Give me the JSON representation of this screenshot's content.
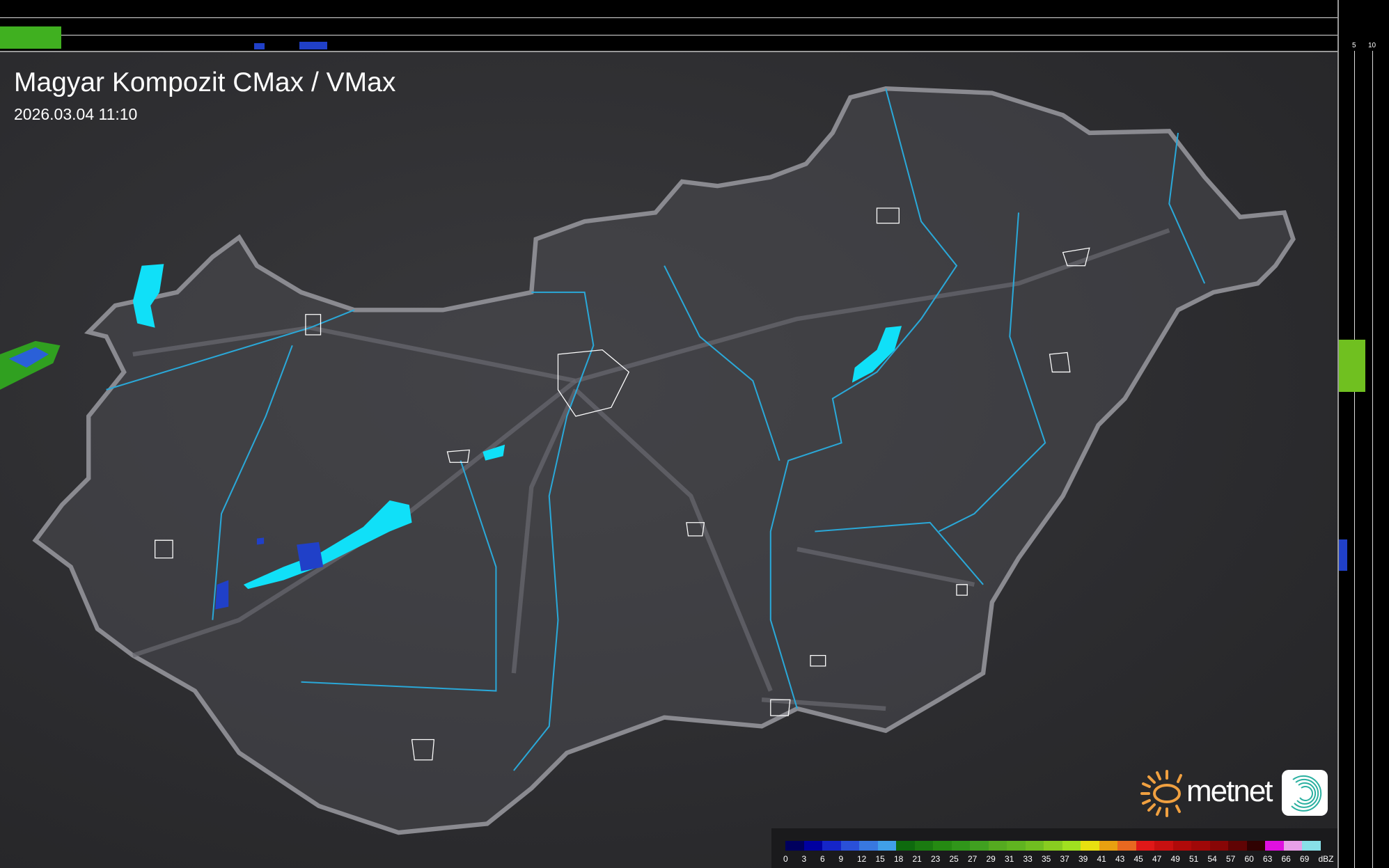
{
  "header": {
    "title": "Magyar Kompozit CMax / VMax",
    "timestamp": "2026.03.04 11:10"
  },
  "profile_axes": {
    "top_ticks": [
      "10",
      "5"
    ],
    "right_ticks": [
      "5",
      "10"
    ]
  },
  "legend": {
    "unit": "dBZ",
    "labels": [
      "0",
      "3",
      "6",
      "9",
      "12",
      "15",
      "18",
      "21",
      "23",
      "25",
      "27",
      "29",
      "31",
      "33",
      "35",
      "37",
      "39",
      "41",
      "43",
      "45",
      "47",
      "49",
      "51",
      "54",
      "57",
      "60",
      "63",
      "66",
      "69"
    ],
    "colors": [
      "#00005e",
      "#0000a0",
      "#1525c8",
      "#2a50d8",
      "#3878e0",
      "#40a0e8",
      "#0e6a0e",
      "#1a7a10",
      "#258a12",
      "#30961a",
      "#40a020",
      "#55aa20",
      "#60b420",
      "#70be20",
      "#88cc20",
      "#a0e020",
      "#e8e010",
      "#e8a010",
      "#e86820",
      "#e01818",
      "#c81010",
      "#b00a0a",
      "#a00808",
      "#880606",
      "#600404",
      "#300202",
      "#e010e0",
      "#e8a0e8",
      "#88e0e8"
    ]
  },
  "logo": {
    "brand": "metnet",
    "sun_color": "#f0a040",
    "badge_color": "#2ab0a0"
  },
  "map_colors": {
    "border": "#8a8a90",
    "rivers": "#2aa8d8",
    "lakes": "#10e0f8",
    "cities": "#ffffff"
  }
}
